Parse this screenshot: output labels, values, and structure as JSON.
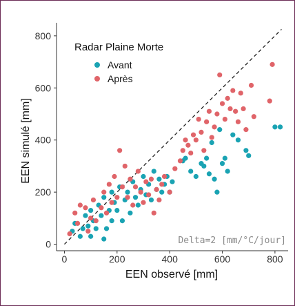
{
  "chart_data": {
    "type": "scatter",
    "xlabel": "EEN observé [mm]",
    "ylabel": "EEN simulé [mm]",
    "xlim": [
      -30,
      850
    ],
    "ylim": [
      -25,
      850
    ],
    "x_ticks": [
      0,
      200,
      400,
      600,
      800
    ],
    "y_ticks": [
      0,
      200,
      400,
      600,
      800
    ],
    "grid": false,
    "legend": {
      "title": "Radar Plaine Morte",
      "placement": "top-left",
      "entries": [
        {
          "label": "Avant",
          "color": "#1aa3b3"
        },
        {
          "label": "Après",
          "color": "#e06469"
        }
      ]
    },
    "reference_line": "y = x",
    "annotation": "Delta=2 [mm/°C/jour]",
    "series": [
      {
        "name": "Avant",
        "color": "#1aa3b3",
        "points": [
          [
            30,
            50
          ],
          [
            40,
            80
          ],
          [
            60,
            30
          ],
          [
            70,
            60
          ],
          [
            80,
            110
          ],
          [
            90,
            70
          ],
          [
            100,
            30
          ],
          [
            100,
            130
          ],
          [
            110,
            90
          ],
          [
            120,
            60
          ],
          [
            130,
            150
          ],
          [
            140,
            110
          ],
          [
            150,
            20
          ],
          [
            150,
            180
          ],
          [
            160,
            60
          ],
          [
            170,
            130
          ],
          [
            180,
            90
          ],
          [
            180,
            200
          ],
          [
            190,
            160
          ],
          [
            200,
            130
          ],
          [
            210,
            220
          ],
          [
            220,
            90
          ],
          [
            230,
            170
          ],
          [
            240,
            200
          ],
          [
            250,
            120
          ],
          [
            260,
            240
          ],
          [
            270,
            180
          ],
          [
            280,
            150
          ],
          [
            290,
            210
          ],
          [
            300,
            260
          ],
          [
            310,
            190
          ],
          [
            320,
            230
          ],
          [
            330,
            170
          ],
          [
            340,
            280
          ],
          [
            350,
            210
          ],
          [
            360,
            250
          ],
          [
            370,
            200
          ],
          [
            380,
            230
          ],
          [
            390,
            260
          ],
          [
            400,
            200
          ],
          [
            410,
            240
          ],
          [
            450,
            320
          ],
          [
            460,
            330
          ],
          [
            480,
            280
          ],
          [
            500,
            260
          ],
          [
            520,
            310
          ],
          [
            530,
            300
          ],
          [
            540,
            330
          ],
          [
            550,
            270
          ],
          [
            560,
            390
          ],
          [
            570,
            250
          ],
          [
            580,
            200
          ],
          [
            590,
            440
          ],
          [
            600,
            310
          ],
          [
            610,
            330
          ],
          [
            620,
            280
          ],
          [
            640,
            420
          ],
          [
            660,
            400
          ],
          [
            690,
            360
          ],
          [
            700,
            340
          ],
          [
            800,
            450
          ],
          [
            820,
            450
          ]
        ]
      },
      {
        "name": "Après",
        "color": "#e06469",
        "points": [
          [
            20,
            40
          ],
          [
            40,
            120
          ],
          [
            50,
            80
          ],
          [
            60,
            150
          ],
          [
            80,
            140
          ],
          [
            90,
            50
          ],
          [
            100,
            100
          ],
          [
            110,
            170
          ],
          [
            120,
            90
          ],
          [
            140,
            140
          ],
          [
            150,
            200
          ],
          [
            160,
            120
          ],
          [
            170,
            230
          ],
          [
            180,
            160
          ],
          [
            190,
            260
          ],
          [
            200,
            180
          ],
          [
            210,
            360
          ],
          [
            220,
            220
          ],
          [
            230,
            300
          ],
          [
            240,
            180
          ],
          [
            250,
            250
          ],
          [
            260,
            150
          ],
          [
            270,
            220
          ],
          [
            280,
            280
          ],
          [
            290,
            200
          ],
          [
            300,
            160
          ],
          [
            310,
            240
          ],
          [
            320,
            190
          ],
          [
            330,
            250
          ],
          [
            340,
            120
          ],
          [
            350,
            210
          ],
          [
            360,
            170
          ],
          [
            370,
            230
          ],
          [
            380,
            260
          ],
          [
            400,
            200
          ],
          [
            420,
            290
          ],
          [
            440,
            320
          ],
          [
            450,
            360
          ],
          [
            460,
            400
          ],
          [
            470,
            380
          ],
          [
            480,
            350
          ],
          [
            490,
            420
          ],
          [
            500,
            400
          ],
          [
            510,
            480
          ],
          [
            520,
            430
          ],
          [
            530,
            360
          ],
          [
            540,
            470
          ],
          [
            550,
            510
          ],
          [
            560,
            410
          ],
          [
            570,
            450
          ],
          [
            580,
            500
          ],
          [
            590,
            650
          ],
          [
            600,
            540
          ],
          [
            610,
            480
          ],
          [
            620,
            560
          ],
          [
            630,
            520
          ],
          [
            640,
            590
          ],
          [
            650,
            510
          ],
          [
            660,
            470
          ],
          [
            670,
            580
          ],
          [
            680,
            520
          ],
          [
            690,
            440
          ],
          [
            710,
            610
          ],
          [
            720,
            490
          ],
          [
            780,
            550
          ],
          [
            790,
            690
          ]
        ]
      }
    ]
  }
}
